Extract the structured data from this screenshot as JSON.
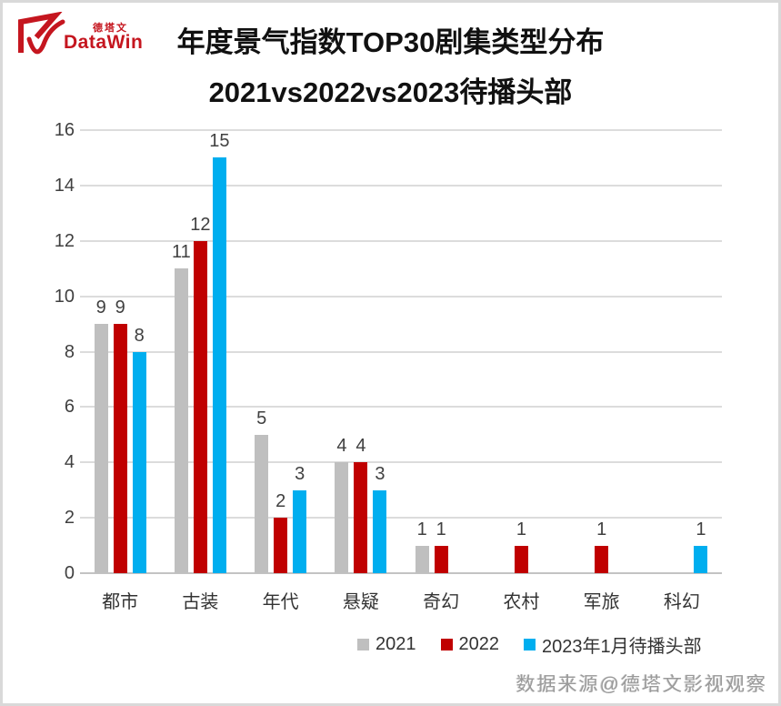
{
  "page": {
    "logo": {
      "brand_cn": "德塔文",
      "brand_en": "DataWin",
      "color": "#c5161f"
    },
    "title": "年度景气指数TOP30剧集类型分布",
    "subtitle": "2021vs2022vs2023待播头部",
    "watermark": "数据来源@德塔文影视观察"
  },
  "chart_data": {
    "type": "bar",
    "title": "年度景气指数TOP30剧集类型分布",
    "subtitle": "2021vs2022vs2023待播头部",
    "categories": [
      "都市",
      "古装",
      "年代",
      "悬疑",
      "奇幻",
      "农村",
      "军旅",
      "科幻"
    ],
    "series": [
      {
        "name": "2021",
        "color": "#bfbfbf",
        "values": [
          9,
          11,
          5,
          4,
          1,
          0,
          0,
          0
        ]
      },
      {
        "name": "2022",
        "color": "#c00000",
        "values": [
          9,
          12,
          2,
          4,
          1,
          1,
          1,
          0
        ]
      },
      {
        "name": "2023年1月待播头部",
        "color": "#00aeef",
        "values": [
          8,
          15,
          3,
          3,
          0,
          0,
          0,
          1
        ]
      }
    ],
    "xlabel": "",
    "ylabel": "",
    "ylim": [
      0,
      16
    ],
    "ytick_step": 2,
    "grid": true,
    "data_labels": true,
    "legend_position": "bottom",
    "gridline_color": "#dcdcdc",
    "label_color": "#404040"
  }
}
